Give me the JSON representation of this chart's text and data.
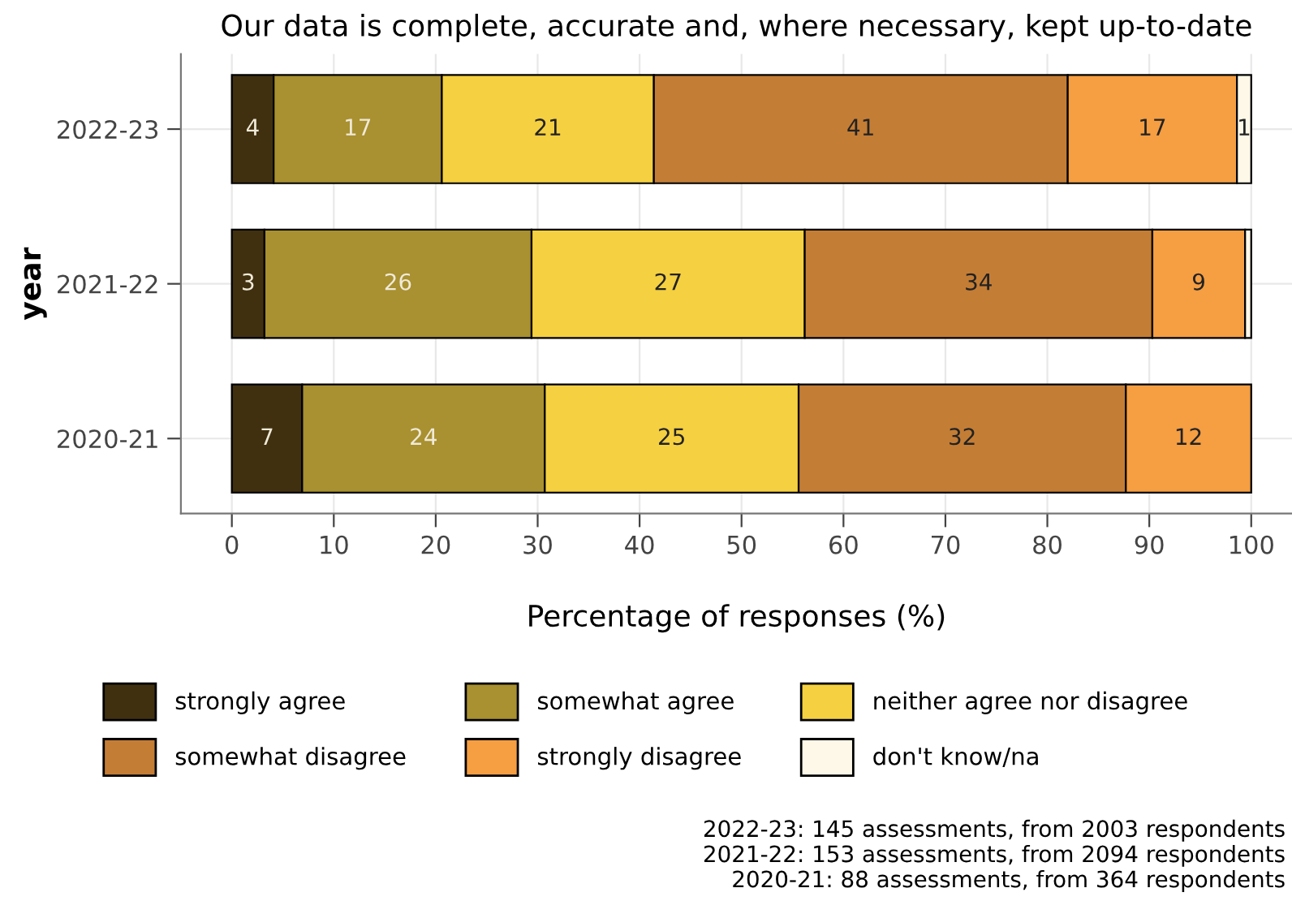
{
  "chart_data": {
    "type": "bar",
    "orientation": "horizontal",
    "stacked": true,
    "title": "Our data is complete, accurate and, where necessary, kept up-to-date",
    "xlabel": "Percentage of responses (%)",
    "ylabel": "year",
    "categories": [
      "2022-23",
      "2021-22",
      "2020-21"
    ],
    "series": [
      {
        "name": "strongly agree",
        "color": "#403010",
        "values": [
          4.1,
          3.2,
          6.9
        ],
        "value_labels": [
          "4",
          "3",
          "7"
        ]
      },
      {
        "name": "somewhat agree",
        "color": "#a99030",
        "values": [
          16.5,
          26.2,
          23.8
        ],
        "value_labels": [
          "17",
          "26",
          "24"
        ]
      },
      {
        "name": "neither agree nor disagree",
        "color": "#f5d040",
        "values": [
          20.8,
          26.8,
          24.9
        ],
        "value_labels": [
          "21",
          "27",
          "25"
        ]
      },
      {
        "name": "somewhat disagree",
        "color": "#c47d35",
        "values": [
          40.6,
          34.1,
          32.1
        ],
        "value_labels": [
          "41",
          "34",
          "32"
        ]
      },
      {
        "name": "strongly disagree",
        "color": "#f59e42",
        "values": [
          16.6,
          9.1,
          12.3
        ],
        "value_labels": [
          "17",
          "9",
          "12"
        ]
      },
      {
        "name": "don't know/na",
        "color": "#fdf8e8",
        "values": [
          1.4,
          0.6,
          null
        ],
        "value_labels": [
          "1",
          null,
          null
        ]
      }
    ],
    "xlim": [
      -5,
      104
    ],
    "xticks": [
      0,
      10,
      20,
      30,
      40,
      50,
      60,
      70,
      80,
      90,
      100
    ],
    "grid": true,
    "legend": "bottom",
    "annotations": [
      "2022-23: 145 assessments, from 2003 respondents",
      "2021-22: 153 assessments, from 2094 respondents",
      "2020-21: 88 assessments, from 364 respondents"
    ]
  }
}
